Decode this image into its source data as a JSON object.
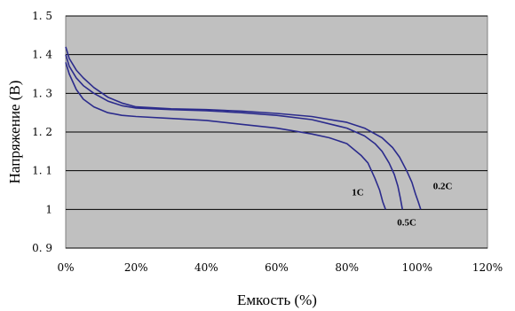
{
  "chart_data": {
    "type": "line",
    "xlabel": "Емкость (%)",
    "ylabel": "Напряжение (В)",
    "xlim": [
      0,
      120
    ],
    "ylim": [
      0.9,
      1.5
    ],
    "x_ticks": [
      "0%",
      "20%",
      "40%",
      "60%",
      "80%",
      "100%",
      "120%"
    ],
    "y_ticks": [
      "0. 9",
      "1",
      "1. 1",
      "1. 2",
      "1. 3",
      "1. 4",
      "1. 5"
    ],
    "grid": "horizontal",
    "plot_background": "#c0c0c0",
    "line_color": "#2b2b8c",
    "series": [
      {
        "name": "0.2C",
        "x": [
          0,
          1,
          3,
          5,
          8,
          12,
          16,
          20,
          30,
          40,
          50,
          60,
          70,
          80,
          85,
          90,
          93,
          95,
          97,
          98.5,
          99.5,
          100.3,
          101
        ],
        "y": [
          1.42,
          1.39,
          1.36,
          1.34,
          1.315,
          1.29,
          1.275,
          1.265,
          1.26,
          1.258,
          1.254,
          1.248,
          1.24,
          1.225,
          1.21,
          1.185,
          1.16,
          1.135,
          1.1,
          1.07,
          1.04,
          1.02,
          1.0
        ]
      },
      {
        "name": "0.5C",
        "x": [
          0,
          1,
          3,
          5,
          8,
          12,
          16,
          20,
          30,
          40,
          50,
          60,
          70,
          80,
          85,
          88,
          90,
          92,
          93.5,
          94.5,
          95.2,
          95.8
        ],
        "y": [
          1.4,
          1.37,
          1.34,
          1.32,
          1.3,
          1.28,
          1.268,
          1.262,
          1.258,
          1.255,
          1.25,
          1.243,
          1.232,
          1.21,
          1.19,
          1.17,
          1.15,
          1.12,
          1.09,
          1.06,
          1.03,
          1.0
        ]
      },
      {
        "name": "1C",
        "x": [
          0,
          1,
          3,
          5,
          8,
          12,
          16,
          20,
          30,
          40,
          50,
          60,
          70,
          75,
          80,
          84,
          86,
          88,
          89.3,
          90.2,
          91
        ],
        "y": [
          1.38,
          1.35,
          1.31,
          1.285,
          1.265,
          1.25,
          1.243,
          1.24,
          1.235,
          1.23,
          1.22,
          1.21,
          1.195,
          1.185,
          1.17,
          1.14,
          1.12,
          1.08,
          1.05,
          1.02,
          1.0
        ]
      }
    ]
  }
}
